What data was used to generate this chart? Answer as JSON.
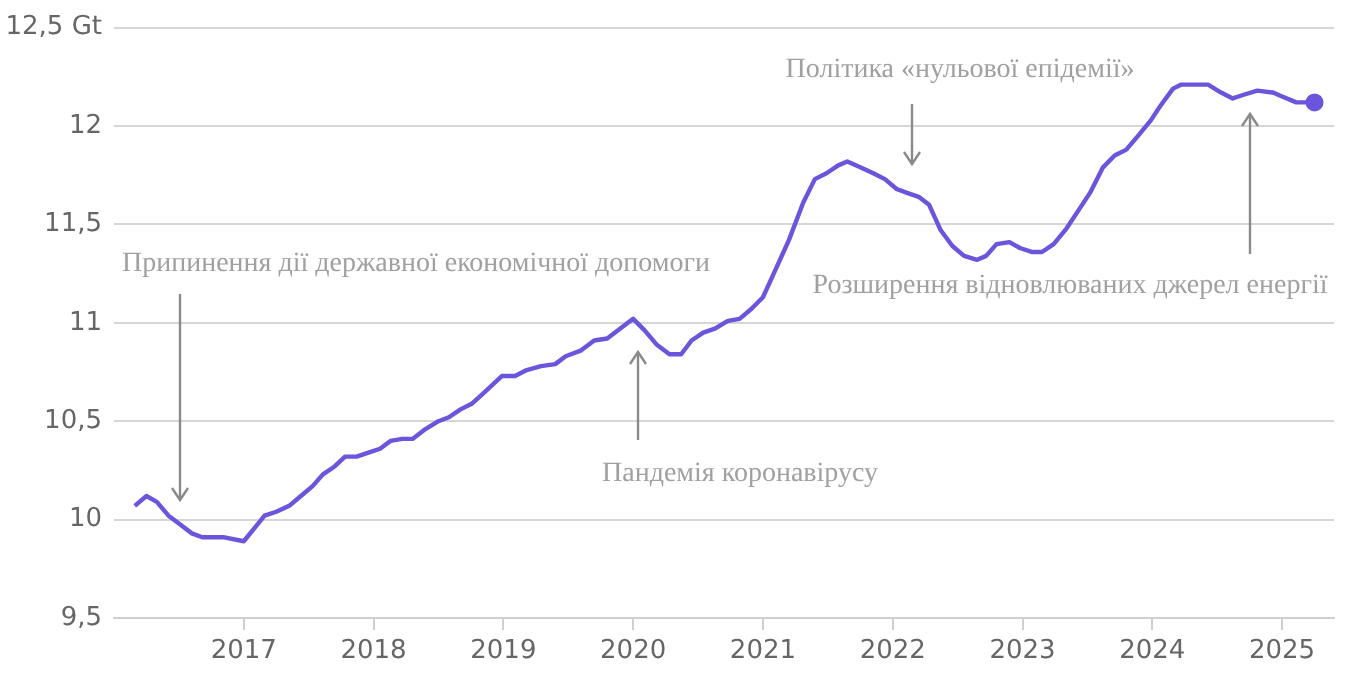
{
  "chart_data": {
    "type": "line",
    "x": [
      2016.16,
      2016.25,
      2016.33,
      2016.42,
      2016.5,
      2016.6,
      2016.68,
      2016.85,
      2017.0,
      2017.16,
      2017.25,
      2017.35,
      2017.44,
      2017.53,
      2017.61,
      2017.7,
      2017.78,
      2017.87,
      2017.96,
      2018.05,
      2018.13,
      2018.22,
      2018.3,
      2018.4,
      2018.5,
      2018.58,
      2018.67,
      2018.76,
      2018.86,
      2018.99,
      2019.09,
      2019.18,
      2019.29,
      2019.4,
      2019.48,
      2019.6,
      2019.7,
      2019.8,
      2020.0,
      2020.09,
      2020.18,
      2020.28,
      2020.37,
      2020.45,
      2020.54,
      2020.63,
      2020.73,
      2020.82,
      2020.91,
      2021.0,
      2021.09,
      2021.2,
      2021.31,
      2021.4,
      2021.49,
      2021.58,
      2021.65,
      2021.75,
      2021.85,
      2021.94,
      2022.03,
      2022.11,
      2022.2,
      2022.28,
      2022.37,
      2022.46,
      2022.55,
      2022.65,
      2022.72,
      2022.8,
      2022.9,
      2022.98,
      2023.07,
      2023.15,
      2023.24,
      2023.34,
      2023.43,
      2023.52,
      2023.62,
      2023.71,
      2023.8,
      2023.89,
      2023.99,
      2024.06,
      2024.16,
      2024.22,
      2024.34,
      2024.43,
      2024.53,
      2024.62,
      2024.71,
      2024.81,
      2024.93,
      2025.0,
      2025.11,
      2025.25
    ],
    "series": [
      {
        "color": "#6a55dc",
        "values": [
          10.07,
          10.12,
          10.09,
          10.02,
          9.98,
          9.93,
          9.91,
          9.91,
          9.89,
          10.02,
          10.04,
          10.07,
          10.12,
          10.17,
          10.23,
          10.27,
          10.32,
          10.32,
          10.34,
          10.36,
          10.4,
          10.41,
          10.41,
          10.46,
          10.5,
          10.52,
          10.56,
          10.59,
          10.65,
          10.73,
          10.73,
          10.76,
          10.78,
          10.79,
          10.83,
          10.86,
          10.91,
          10.92,
          11.02,
          10.96,
          10.89,
          10.84,
          10.84,
          10.91,
          10.95,
          10.97,
          11.01,
          11.02,
          11.07,
          11.13,
          11.26,
          11.42,
          11.61,
          11.73,
          11.76,
          11.8,
          11.82,
          11.79,
          11.76,
          11.73,
          11.68,
          11.66,
          11.64,
          11.6,
          11.47,
          11.39,
          11.34,
          11.32,
          11.34,
          11.4,
          11.41,
          11.38,
          11.36,
          11.36,
          11.4,
          11.48,
          11.57,
          11.66,
          11.79,
          11.85,
          11.88,
          11.95,
          12.03,
          12.1,
          12.19,
          12.21,
          12.21,
          12.21,
          12.17,
          12.14,
          12.16,
          12.18,
          12.17,
          12.15,
          12.12,
          12.12
        ]
      },
      {
        "type": "scatter",
        "color": "#6a55dc",
        "marker": "circle",
        "x": [
          2025.25
        ],
        "values": [
          12.12
        ]
      }
    ],
    "xlim": [
      2016,
      2025.4
    ],
    "xticks": [
      2017,
      2018,
      2019,
      2020,
      2021,
      2022,
      2023,
      2024,
      2025
    ],
    "ylim": [
      9.5,
      12.5
    ],
    "yticks": [
      {
        "value": 9.5,
        "label": "9,5"
      },
      10,
      {
        "value": 10.5,
        "label": "10,5"
      },
      11,
      {
        "value": 11.5,
        "label": "11,5"
      },
      12,
      {
        "value": 12.5,
        "label": "12,5 Gt"
      }
    ],
    "grid": "y",
    "legend": false,
    "line_style": "solid",
    "annotations": [
      "Припинення дії державної економічної допомоги",
      "Пандемія коронавірусу",
      "Політика «нульової епідемії»",
      "Розширення відновлюваних джерел енергії"
    ]
  }
}
